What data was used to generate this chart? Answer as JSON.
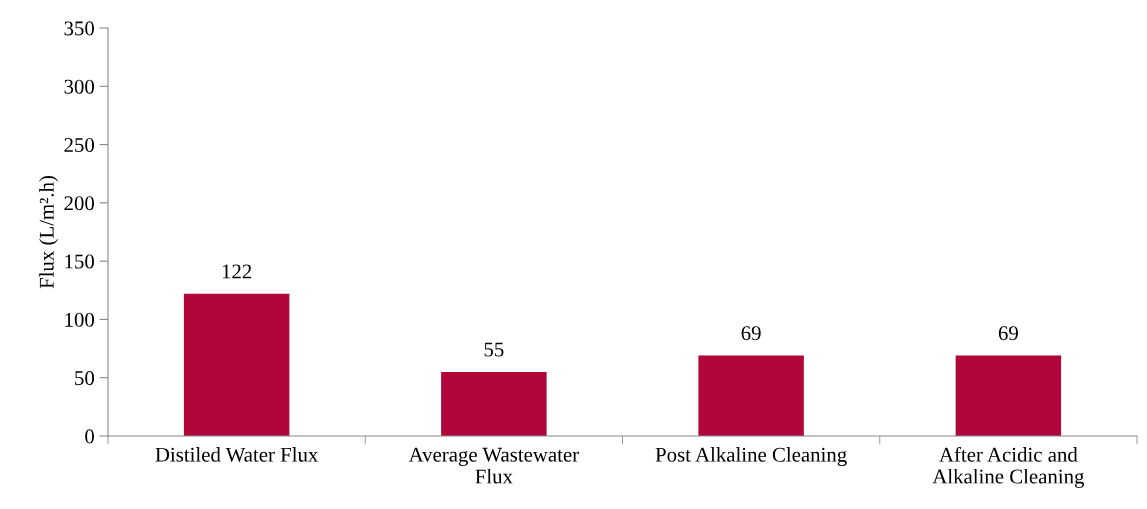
{
  "chart_data": {
    "type": "bar",
    "ylabel": "Flux (L/m².h)",
    "categories": [
      "Distiled Water Flux",
      "Average Wastewater\nFlux",
      "Post Alkaline Cleaning",
      "After Acidic and\nAlkaline Cleaning"
    ],
    "values": [
      122,
      55,
      69,
      69
    ],
    "color": "#b0063a",
    "ylim": [
      0,
      350
    ],
    "yticks": [
      0,
      50,
      100,
      150,
      200,
      250,
      300,
      350
    ],
    "grid": false,
    "data_labels": true
  }
}
